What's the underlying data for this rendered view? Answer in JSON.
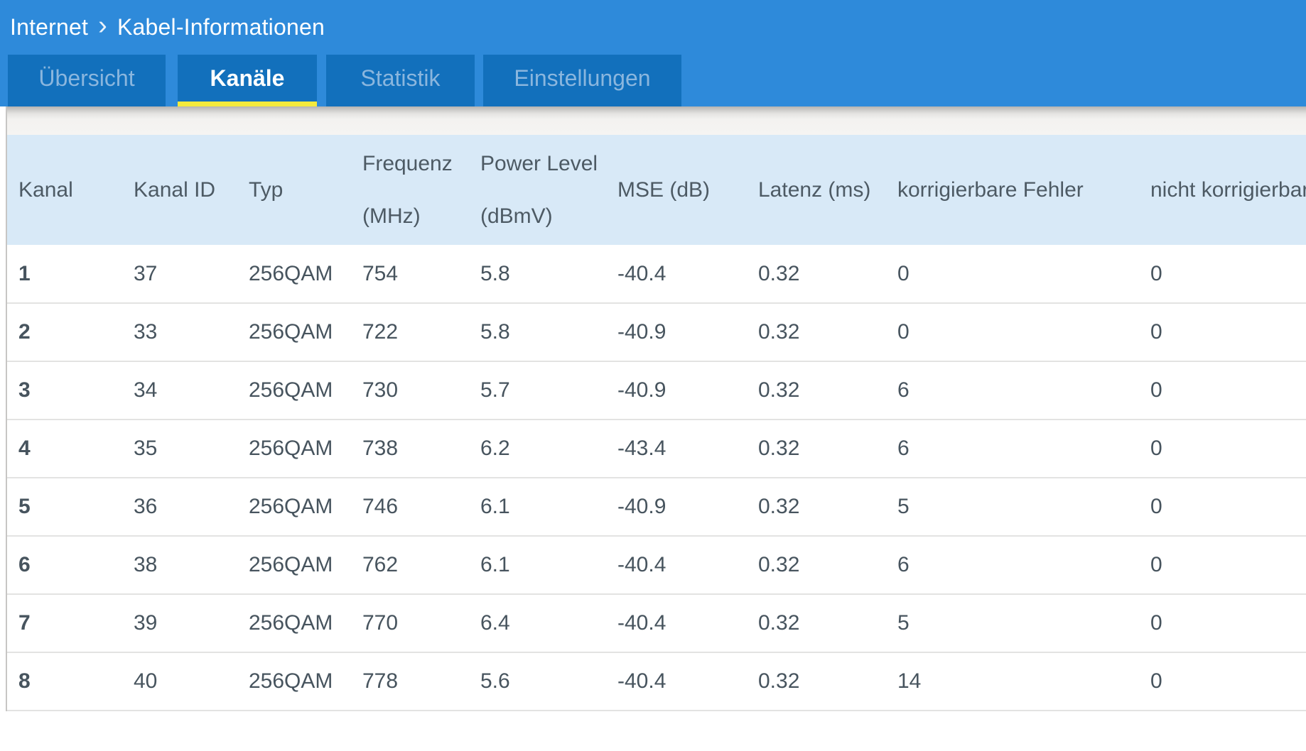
{
  "breadcrumb": {
    "section": "Internet",
    "separator": "›",
    "page": "Kabel-Informationen"
  },
  "tabs": [
    {
      "label": "Übersicht",
      "active": false
    },
    {
      "label": "Kanäle",
      "active": true
    },
    {
      "label": "Statistik",
      "active": false
    },
    {
      "label": "Einstellungen",
      "active": false
    }
  ],
  "table": {
    "columns": [
      {
        "label": "Kanal"
      },
      {
        "label": "Kanal ID"
      },
      {
        "label": "Typ"
      },
      {
        "label": "Frequenz",
        "label2": "(MHz)"
      },
      {
        "label": "Power Level",
        "label2": "(dBmV)"
      },
      {
        "label": "MSE (dB)"
      },
      {
        "label": "Latenz (ms)"
      },
      {
        "label": "korrigierbare Fehler"
      },
      {
        "label": "nicht korrigierbare"
      }
    ],
    "rows": [
      {
        "cells": [
          "1",
          "37",
          "256QAM",
          "754",
          "5.8",
          "-40.4",
          "0.32",
          "0",
          "0"
        ]
      },
      {
        "cells": [
          "2",
          "33",
          "256QAM",
          "722",
          "5.8",
          "-40.9",
          "0.32",
          "0",
          "0"
        ]
      },
      {
        "cells": [
          "3",
          "34",
          "256QAM",
          "730",
          "5.7",
          "-40.9",
          "0.32",
          "6",
          "0"
        ]
      },
      {
        "cells": [
          "4",
          "35",
          "256QAM",
          "738",
          "6.2",
          "-43.4",
          "0.32",
          "6",
          "0"
        ]
      },
      {
        "cells": [
          "5",
          "36",
          "256QAM",
          "746",
          "6.1",
          "-40.9",
          "0.32",
          "5",
          "0"
        ]
      },
      {
        "cells": [
          "6",
          "38",
          "256QAM",
          "762",
          "6.1",
          "-40.4",
          "0.32",
          "6",
          "0"
        ]
      },
      {
        "cells": [
          "7",
          "39",
          "256QAM",
          "770",
          "6.4",
          "-40.4",
          "0.32",
          "5",
          "0"
        ]
      },
      {
        "cells": [
          "8",
          "40",
          "256QAM",
          "778",
          "5.6",
          "-40.4",
          "0.32",
          "14",
          "0"
        ]
      }
    ]
  },
  "colors": {
    "header_blue": "#2e8ada",
    "tab_blue": "#1270bc",
    "active_tab_underline_yellow": "#f4ea3d",
    "inactive_tab_text": "#8ab6de",
    "table_header_bg": "#d8e9f7",
    "body_text": "#47545e"
  }
}
